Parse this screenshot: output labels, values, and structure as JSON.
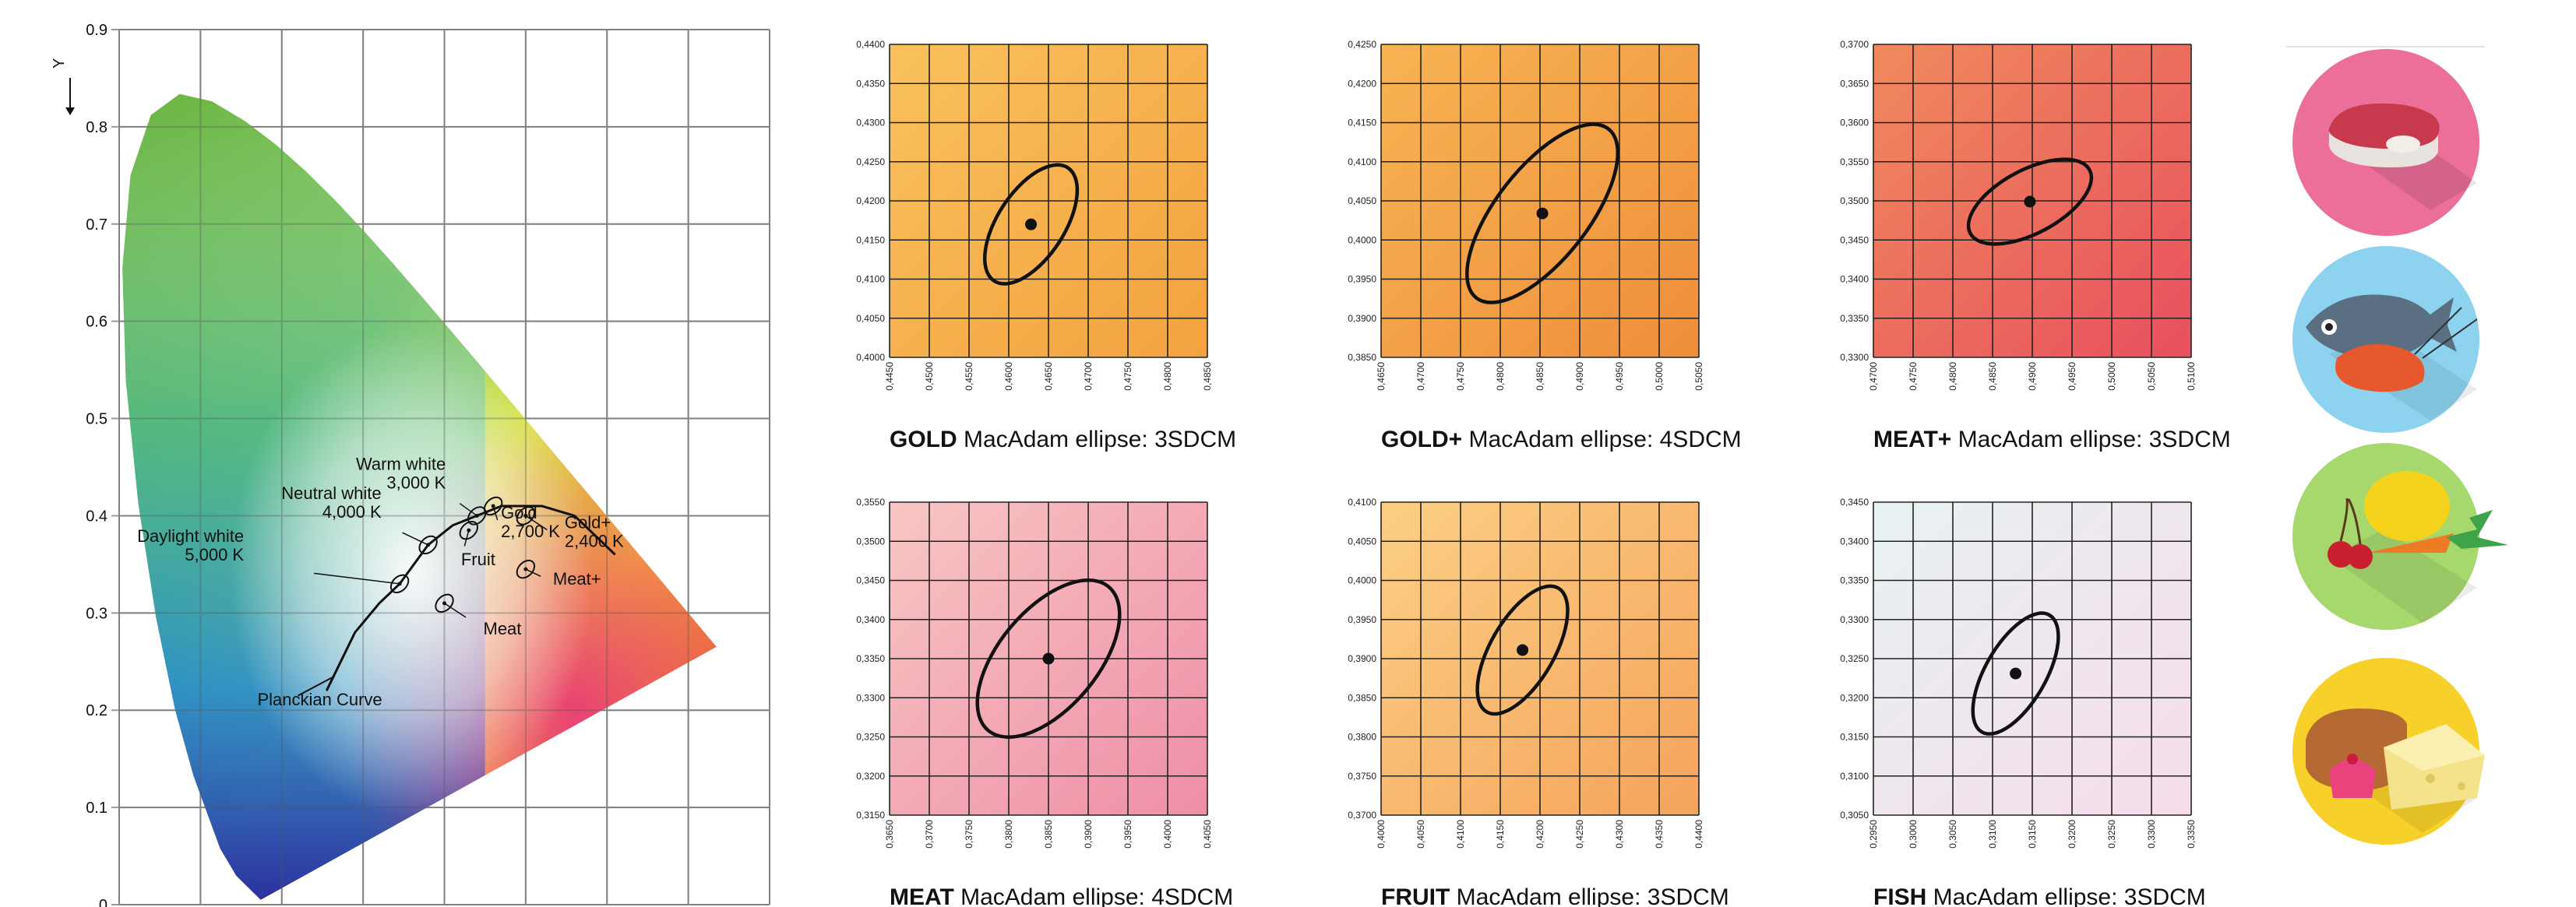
{
  "colors": {
    "gold": [
      "#f9c15d",
      "#f3a23f"
    ],
    "gold_plus": [
      "#f7b453",
      "#ef8e3b"
    ],
    "meat_plus": [
      "#f08a5e",
      "#e8505e"
    ],
    "meat": [
      "#f7c6c4",
      "#ef8ea6"
    ],
    "fruit": [
      "#fbcf85",
      "#f5a45a"
    ],
    "fish": [
      "#e8f2f2",
      "#f6dcea"
    ],
    "icon_meat": "#ec6f9a",
    "icon_fish": "#8dd3ef",
    "icon_fruit": "#a6d86e",
    "icon_bakery": "#f7d12a"
  },
  "chart_data": [
    {
      "type": "scatter",
      "name": "cie",
      "title": "",
      "ylabel": "Y",
      "xlim": [
        0,
        0.8
      ],
      "ylim": [
        0,
        0.9
      ],
      "grid": true,
      "yticks": [
        "0",
        "0.1",
        "0.2",
        "0.3",
        "0.4",
        "0.5",
        "0.6",
        "0.7",
        "0.8",
        "0.9"
      ],
      "curve_label": "Planckian Curve",
      "points": [
        {
          "label": "Daylight white\n5,000 K",
          "x": 0.345,
          "y": 0.33
        },
        {
          "label": "Neutral white\n4,000 K",
          "x": 0.38,
          "y": 0.37
        },
        {
          "label": "Warm white\n3,000 K",
          "x": 0.44,
          "y": 0.4
        },
        {
          "label": "Gold\n2,700 K",
          "x": 0.46,
          "y": 0.41
        },
        {
          "label": "Gold+\n2,400 K",
          "x": 0.5,
          "y": 0.4
        },
        {
          "label": "Fruit",
          "x": 0.43,
          "y": 0.385
        },
        {
          "label": "Meat+",
          "x": 0.5,
          "y": 0.345
        },
        {
          "label": "Meat",
          "x": 0.4,
          "y": 0.31
        }
      ]
    },
    {
      "type": "scatter",
      "name": "GOLD",
      "caption_rest": "MacAdam ellipse: 3SDCM",
      "xlim": [
        0.445,
        0.485
      ],
      "ylim": [
        0.4,
        0.44
      ],
      "xticks": [
        "0,4450",
        "0,4500",
        "0,4550",
        "0,4600",
        "0,4650",
        "0,4700",
        "0,4750",
        "0,4800",
        "0,4850"
      ],
      "yticks": [
        "0,4000",
        "0,4050",
        "0,4100",
        "0,4150",
        "0,4200",
        "0,4250",
        "0,4300",
        "0,4350",
        "0,4400"
      ],
      "center": [
        0.4628,
        0.417
      ],
      "ellipse": {
        "a": 0.0085,
        "b": 0.0042,
        "angle_deg": 57
      }
    },
    {
      "type": "scatter",
      "name": "GOLD+",
      "caption_rest": "MacAdam ellipse: 4SDCM",
      "xlim": [
        0.465,
        0.505
      ],
      "ylim": [
        0.385,
        0.425
      ],
      "xticks": [
        "0,4650",
        "0,4700",
        "0,4750",
        "0,4800",
        "0,4850",
        "0,4900",
        "0,4950",
        "0,5000",
        "0,5050"
      ],
      "yticks": [
        "0,3850",
        "0,3900",
        "0,3950",
        "0,4000",
        "0,4050",
        "0,4100",
        "0,4150",
        "0,4200",
        "0,4250"
      ],
      "center": [
        0.4853,
        0.4034
      ],
      "ellipse": {
        "a": 0.0135,
        "b": 0.0058,
        "angle_deg": 52
      }
    },
    {
      "type": "scatter",
      "name": "MEAT+",
      "caption_rest": "MacAdam ellipse: 3SDCM",
      "xlim": [
        0.47,
        0.51
      ],
      "ylim": [
        0.33,
        0.37
      ],
      "xticks": [
        "0,4700",
        "0,4750",
        "0,4800",
        "0,4850",
        "0,4900",
        "0,4950",
        "0,5000",
        "0,5050",
        "0,5100"
      ],
      "yticks": [
        "0,3300",
        "0,3350",
        "0,3400",
        "0,3450",
        "0,3500",
        "0,3550",
        "0,3600",
        "0,3650",
        "0,3700"
      ],
      "center": [
        0.4897,
        0.3499
      ],
      "ellipse": {
        "a": 0.0085,
        "b": 0.004,
        "angle_deg": 28
      }
    },
    {
      "type": "scatter",
      "name": "MEAT",
      "caption_rest": "MacAdam ellipse: 4SDCM",
      "xlim": [
        0.365,
        0.405
      ],
      "ylim": [
        0.315,
        0.355
      ],
      "xticks": [
        "0,3650",
        "0,3700",
        "0,3750",
        "0,3800",
        "0,3850",
        "0,3900",
        "0,3950",
        "0,4000",
        "0,4050"
      ],
      "yticks": [
        "0,3150",
        "0,3200",
        "0,3250",
        "0,3300",
        "0,3350",
        "0,3400",
        "0,3450",
        "0,3500",
        "0,3550"
      ],
      "center": [
        0.385,
        0.335
      ],
      "ellipse": {
        "a": 0.0118,
        "b": 0.0062,
        "angle_deg": 50
      }
    },
    {
      "type": "scatter",
      "name": "FRUIT",
      "caption_rest": "MacAdam ellipse: 3SDCM",
      "xlim": [
        0.4,
        0.44
      ],
      "ylim": [
        0.37,
        0.41
      ],
      "xticks": [
        "0,4000",
        "0,4050",
        "0,4100",
        "0,4150",
        "0,4200",
        "0,4250",
        "0,4300",
        "0,4350",
        "0,4400"
      ],
      "yticks": [
        "0,3700",
        "0,3750",
        "0,3800",
        "0,3850",
        "0,3900",
        "0,3950",
        "0,4000",
        "0,4050",
        "0,4100"
      ],
      "center": [
        0.4178,
        0.3911
      ],
      "ellipse": {
        "a": 0.009,
        "b": 0.004,
        "angle_deg": 60
      }
    },
    {
      "type": "scatter",
      "name": "FISH",
      "caption_rest": "MacAdam ellipse: 3SDCM",
      "xlim": [
        0.295,
        0.335
      ],
      "ylim": [
        0.305,
        0.345
      ],
      "xticks": [
        "0,2950",
        "0,3000",
        "0,3050",
        "0,3100",
        "0,3150",
        "0,3200",
        "0,3250",
        "0,3300",
        "0,3350"
      ],
      "yticks": [
        "0,3050",
        "0,3100",
        "0,3150",
        "0,3200",
        "0,3250",
        "0,3300",
        "0,3350",
        "0,3400",
        "0,3450"
      ],
      "center": [
        0.3129,
        0.3231
      ],
      "ellipse": {
        "a": 0.0085,
        "b": 0.0038,
        "angle_deg": 60
      }
    }
  ],
  "icons": [
    "meat-icon",
    "fish-icon",
    "fruit-icon",
    "bakery-icon"
  ]
}
